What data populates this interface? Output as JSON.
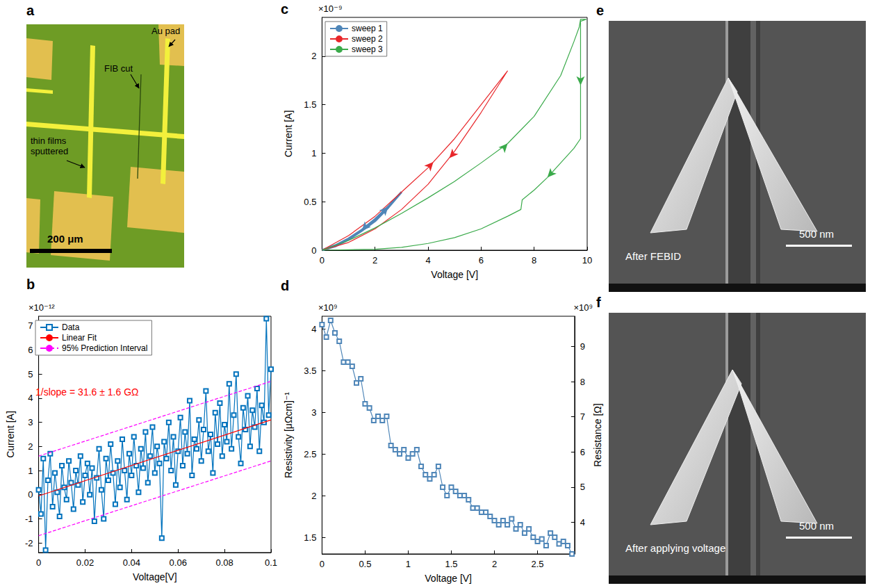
{
  "chart_data": [
    {
      "panel": "b",
      "type": "line",
      "x_label": "Voltage[V]",
      "y_label": "Current [A]",
      "y_scale_text": "×10⁻¹²",
      "annotation": "1/slope = 31.6 ± 1.6 GΩ",
      "xlim": [
        0,
        0.1
      ],
      "xticks": [
        0,
        0.02,
        0.04,
        0.06,
        0.08,
        0.1
      ],
      "ylim": [
        -2.4,
        7.4
      ],
      "yticks": [
        -2,
        -1,
        0,
        1,
        2,
        3,
        4,
        5,
        6,
        7
      ],
      "grid": false,
      "legend": "upper left",
      "series": [
        {
          "name": "Data",
          "type": "line",
          "marker": "square",
          "color": "#0072bd",
          "x": [
            0,
            0.001,
            0.002,
            0.003,
            0.004,
            0.005,
            0.006,
            0.007,
            0.008,
            0.009,
            0.01,
            0.011,
            0.012,
            0.013,
            0.014,
            0.015,
            0.016,
            0.017,
            0.018,
            0.019,
            0.02,
            0.021,
            0.022,
            0.023,
            0.024,
            0.025,
            0.026,
            0.027,
            0.028,
            0.029,
            0.03,
            0.031,
            0.032,
            0.033,
            0.034,
            0.035,
            0.036,
            0.037,
            0.038,
            0.039,
            0.04,
            0.041,
            0.042,
            0.043,
            0.044,
            0.045,
            0.046,
            0.047,
            0.048,
            0.049,
            0.05,
            0.051,
            0.052,
            0.053,
            0.054,
            0.055,
            0.056,
            0.057,
            0.058,
            0.059,
            0.06,
            0.061,
            0.062,
            0.063,
            0.064,
            0.065,
            0.066,
            0.067,
            0.068,
            0.069,
            0.07,
            0.071,
            0.072,
            0.073,
            0.074,
            0.075,
            0.076,
            0.077,
            0.078,
            0.079,
            0.08,
            0.081,
            0.082,
            0.083,
            0.084,
            0.085,
            0.086,
            0.087,
            0.088,
            0.089,
            0.09,
            0.091,
            0.092,
            0.093,
            0.094,
            0.095,
            0.096,
            0.097,
            0.098,
            0.099,
            0.1
          ],
          "values": [
            0.2,
            -0.8,
            1.5,
            -2.3,
            0.6,
            1.7,
            -0.5,
            0.9,
            0.1,
            -0.9,
            1.2,
            0.3,
            -0.2,
            1.4,
            0.5,
            -0.6,
            1.0,
            0.4,
            1.6,
            -0.3,
            0.8,
            1.3,
            0.0,
            1.1,
            -1.1,
            0.7,
            1.9,
            0.2,
            -1.0,
            1.5,
            0.6,
            2.1,
            0.9,
            -0.4,
            1.4,
            0.3,
            2.3,
            1.0,
            -0.2,
            1.7,
            0.8,
            2.4,
            1.2,
            0.1,
            1.9,
            1.1,
            2.6,
            0.5,
            1.6,
            2.8,
            0.9,
            2.0,
            1.3,
            -1.8,
            2.2,
            1.5,
            3.0,
            1.0,
            2.4,
            0.4,
            1.8,
            3.2,
            1.2,
            2.6,
            1.7,
            3.9,
            0.8,
            2.3,
            1.9,
            3.1,
            1.4,
            2.7,
            4.3,
            1.8,
            2.5,
            0.9,
            3.4,
            2.1,
            3.8,
            1.6,
            2.9,
            2.2,
            4.6,
            1.9,
            3.3,
            5.0,
            2.4,
            1.3,
            3.6,
            2.7,
            4.1,
            2.0,
            3.5,
            2.8,
            4.4,
            1.8,
            3.7,
            3.0,
            7.3,
            3.3,
            5.2
          ]
        },
        {
          "name": "Linear Fit",
          "type": "line",
          "marker": "none",
          "color": "#ff0000",
          "x": [
            0,
            0.1
          ],
          "values": [
            -0.05,
            3.1
          ]
        },
        {
          "name": "95% Prediction Interval",
          "type": "line",
          "marker": "none",
          "line_style": "dashed",
          "color": "#ff00ff",
          "x": [
            0,
            0.1
          ],
          "upper": [
            1.6,
            4.7
          ],
          "lower": [
            -1.7,
            1.4
          ]
        }
      ]
    },
    {
      "panel": "c",
      "type": "line",
      "x_label": "Voltage [V]",
      "y_label": "Current [A]",
      "y_scale_text": "×10⁻⁹",
      "xlim": [
        0,
        10
      ],
      "xticks": [
        0,
        2,
        4,
        6,
        8,
        10
      ],
      "ylim": [
        0,
        2.4
      ],
      "yticks": [
        0,
        0.5,
        1,
        1.5,
        2
      ],
      "grid": false,
      "legend": "upper left",
      "series": [
        {
          "name": "sweep 1",
          "color": "#4f86b8",
          "marker": "none",
          "x": [
            0,
            0.5,
            1,
            1.5,
            2,
            2.5,
            3,
            2.5,
            2,
            1.5,
            1,
            0.5,
            0
          ],
          "values": [
            0,
            0.05,
            0.12,
            0.21,
            0.32,
            0.45,
            0.6,
            0.44,
            0.3,
            0.2,
            0.11,
            0.04,
            0
          ],
          "arrows": [
            {
              "x": 2.5,
              "y": 0.45,
              "direction": "up-right"
            },
            {
              "x": 1.5,
              "y": 0.2,
              "direction": "down-left"
            }
          ]
        },
        {
          "name": "sweep 2",
          "color": "#e8262a",
          "marker": "none",
          "x": [
            0,
            1,
            2,
            3,
            4,
            5,
            6,
            7,
            6,
            5,
            4,
            3,
            2,
            1,
            0
          ],
          "values": [
            0,
            0.15,
            0.35,
            0.6,
            0.85,
            1.15,
            1.5,
            1.85,
            1.42,
            1.02,
            0.68,
            0.42,
            0.22,
            0.08,
            0
          ],
          "arrows": [
            {
              "x": 4.2,
              "y": 0.91,
              "direction": "up-right"
            },
            {
              "x": 4.8,
              "y": 0.95,
              "direction": "down-left"
            }
          ]
        },
        {
          "name": "sweep 3",
          "color": "#3aaa4a",
          "marker": "none",
          "x": [
            0,
            1,
            2,
            3,
            4,
            5,
            6,
            7,
            8,
            9,
            9.5,
            9.7,
            9.75,
            9.97,
            9.75,
            9.75,
            9.5,
            9,
            8.5,
            8,
            7.55,
            7.5,
            7,
            6,
            5,
            4,
            3,
            2,
            1,
            0
          ],
          "values": [
            0,
            0.1,
            0.23,
            0.38,
            0.54,
            0.71,
            0.9,
            1.1,
            1.38,
            1.8,
            2.15,
            2.3,
            2.38,
            2.38,
            2.36,
            1.15,
            1.05,
            0.9,
            0.75,
            0.62,
            0.52,
            0.42,
            0.35,
            0.22,
            0.13,
            0.07,
            0.03,
            0.01,
            0.005,
            0
          ],
          "arrows": [
            {
              "x": 7,
              "y": 1.1,
              "direction": "up-right"
            },
            {
              "x": 9.75,
              "y": 1.7,
              "direction": "down"
            },
            {
              "x": 8.5,
              "y": 0.75,
              "direction": "down-left"
            }
          ]
        }
      ]
    },
    {
      "panel": "d",
      "type": "line",
      "x_label": "Voltage [V]",
      "y_label": "Resistivity [μΩcm]⁻¹",
      "y_scale_text": "×10⁹",
      "y2_label": "Resistance [Ω]",
      "y2_scale_text": "×10⁹",
      "xlim": [
        0,
        2.93
      ],
      "xticks": [
        0,
        0.5,
        1,
        1.5,
        2,
        2.5
      ],
      "ylim": [
        1.3,
        4.15
      ],
      "yticks": [
        1.5,
        2,
        2.5,
        3,
        3.5,
        4
      ],
      "y2lim": [
        3.1,
        9.86
      ],
      "y2ticks": [
        4,
        5,
        6,
        7,
        8,
        9
      ],
      "grid": false,
      "series": [
        {
          "color": "#4f86b8",
          "marker": "square",
          "x": [
            0,
            0.05,
            0.1,
            0.15,
            0.2,
            0.25,
            0.3,
            0.35,
            0.4,
            0.45,
            0.5,
            0.55,
            0.6,
            0.65,
            0.7,
            0.75,
            0.8,
            0.85,
            0.9,
            0.95,
            1,
            1.05,
            1.1,
            1.15,
            1.2,
            1.25,
            1.3,
            1.35,
            1.4,
            1.45,
            1.5,
            1.55,
            1.6,
            1.65,
            1.7,
            1.75,
            1.8,
            1.85,
            1.9,
            1.95,
            2,
            2.05,
            2.1,
            2.15,
            2.2,
            2.25,
            2.3,
            2.35,
            2.4,
            2.45,
            2.5,
            2.55,
            2.6,
            2.65,
            2.7,
            2.75,
            2.8,
            2.85,
            2.9
          ],
          "values": [
            4.05,
            3.9,
            4.1,
            3.95,
            3.85,
            3.6,
            3.6,
            3.55,
            3.35,
            3.4,
            3.1,
            3.05,
            2.9,
            2.95,
            2.9,
            2.95,
            2.6,
            2.55,
            2.5,
            2.55,
            2.45,
            2.5,
            2.55,
            2.35,
            2.25,
            2.2,
            2.25,
            2.35,
            2.1,
            2.0,
            2.1,
            2.05,
            2.0,
            2.0,
            1.95,
            1.85,
            1.85,
            1.8,
            1.8,
            1.75,
            1.7,
            1.65,
            1.7,
            1.65,
            1.72,
            1.6,
            1.65,
            1.55,
            1.6,
            1.5,
            1.45,
            1.48,
            1.4,
            1.55,
            1.5,
            1.42,
            1.45,
            1.4,
            1.3
          ]
        }
      ]
    }
  ],
  "images": [
    {
      "panel": "a",
      "labels": [
        "Au pad",
        "FIB cut",
        "thin films sputtered"
      ],
      "scale_bar": "200 μm"
    },
    {
      "panel": "e",
      "caption": "After FEBID",
      "scale_bar": "500 nm"
    },
    {
      "panel": "f",
      "caption": "After applying voltage",
      "scale_bar": "500 nm"
    }
  ]
}
